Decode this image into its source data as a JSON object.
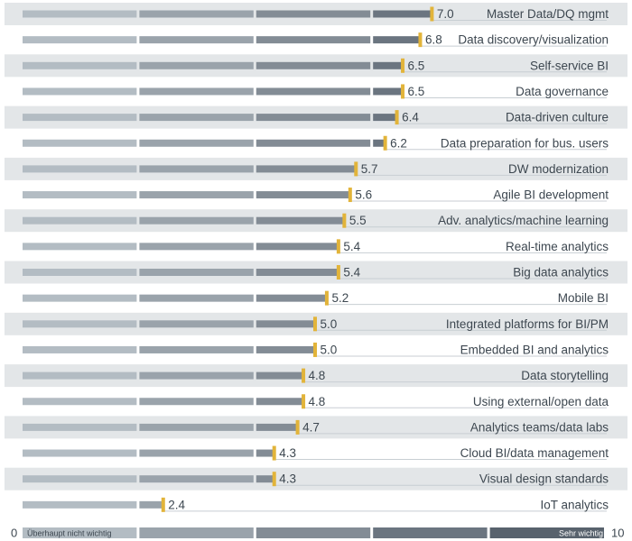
{
  "chart_data": {
    "type": "bar",
    "orientation": "horizontal",
    "xlim": [
      0,
      10
    ],
    "categories": [
      "Master Data/DQ mgmt",
      "Data discovery/visualization",
      "Self-service BI",
      "Data governance",
      "Data-driven culture",
      "Data preparation for bus. users",
      "DW modernization",
      "Agile BI development",
      "Adv. analytics/machine learning",
      "Real-time analytics",
      "Big data analytics",
      "Mobile BI",
      "Integrated platforms for BI/PM",
      "Embedded BI and analytics",
      "Data storytelling",
      "Using external/open data",
      "Analytics teams/data labs",
      "Cloud BI/data management",
      "Visual design standards",
      "IoT analytics"
    ],
    "values": [
      7.0,
      6.8,
      6.5,
      6.5,
      6.4,
      6.2,
      5.7,
      5.6,
      5.5,
      5.4,
      5.4,
      5.2,
      5.0,
      5.0,
      4.8,
      4.8,
      4.7,
      4.3,
      4.3,
      2.4
    ],
    "value_labels": [
      "7.0",
      "6.8",
      "6.5",
      "6.5",
      "6.4",
      "6.2",
      "5.7",
      "5.6",
      "5.5",
      "5.4",
      "5.4",
      "5.2",
      "5.0",
      "5.0",
      "4.8",
      "4.8",
      "4.7",
      "4.3",
      "4.3",
      "2.4"
    ],
    "axis_min_label": "0",
    "axis_max_label": "10",
    "scale_low_label": "Überhaupt nicht wichtig",
    "scale_high_label": "Sehr wichtig",
    "segment_colors": [
      "#b3bcc3",
      "#9aa3ab",
      "#838c95",
      "#6b7580",
      "#58626d"
    ],
    "marker_color": "#e2b43a",
    "stripe_color": "#e3e6e8"
  }
}
